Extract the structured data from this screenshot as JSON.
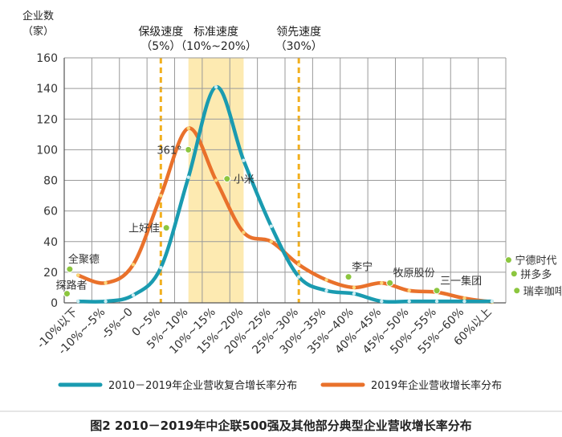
{
  "chart_data": {
    "type": "line",
    "ylabel_line1": "企业数",
    "ylabel_line2": "（家）",
    "ylim": [
      0,
      160
    ],
    "yticks": [
      0,
      20,
      40,
      60,
      80,
      100,
      120,
      140,
      160
    ],
    "categories": [
      "-10%以下",
      "-10%~-5%",
      "-5%~0",
      "0~5%",
      "5%~10%",
      "10%~15%",
      "15%~20%",
      "20%~25%",
      "25%~30%",
      "30%~35%",
      "35%~40%",
      "40%~45%",
      "45%~50%",
      "50%~55%",
      "55%~60%",
      "60%以上"
    ],
    "series": [
      {
        "name": "2010－2019年企业营收复合增长率分布",
        "color": "#1a9bb0",
        "values": [
          1,
          1,
          5,
          23,
          82,
          141,
          93,
          50,
          17,
          8,
          6,
          1,
          1,
          1,
          1,
          1
        ]
      },
      {
        "name": "2019年企业营收增长率分布",
        "color": "#e9712b",
        "values": [
          18,
          13,
          25,
          70,
          114,
          80,
          46,
          40,
          25,
          15,
          10,
          13,
          8,
          7,
          3,
          0
        ]
      }
    ],
    "bands": [
      {
        "label_line1": "保级速度",
        "label_line2": "（5%）",
        "type": "line",
        "at": 3.5
      },
      {
        "label_line1": "标准速度",
        "label_line2": "（10%~20%）",
        "type": "range",
        "from": 4.5,
        "to": 6.5
      },
      {
        "label_line1": "领先速度",
        "label_line2": "（30%）",
        "type": "line",
        "at": 8.5
      }
    ],
    "annotations": [
      {
        "text": "全聚德",
        "x": -0.3,
        "y": 22
      },
      {
        "text": "探路者",
        "x": -0.4,
        "y": 6
      },
      {
        "text": "上好佳",
        "x": 3.2,
        "y": 49
      },
      {
        "text": "361°",
        "x": 4.0,
        "y": 100
      },
      {
        "text": "小米",
        "x": 5.4,
        "y": 81
      },
      {
        "text": "李宁",
        "x": 9.8,
        "y": 17
      },
      {
        "text": "牧原股份",
        "x": 11.3,
        "y": 13
      },
      {
        "text": "三一集团",
        "x": 13.0,
        "y": 8
      },
      {
        "text": "宁德时代",
        "x": 15.6,
        "y": 28
      },
      {
        "text": "拼多多",
        "x": 15.8,
        "y": 19
      },
      {
        "text": "瑞幸咖啡",
        "x": 15.9,
        "y": 8
      }
    ]
  },
  "caption": "图2  2010－2019年中企联500强及其他部分典型企业营收增长率分布"
}
